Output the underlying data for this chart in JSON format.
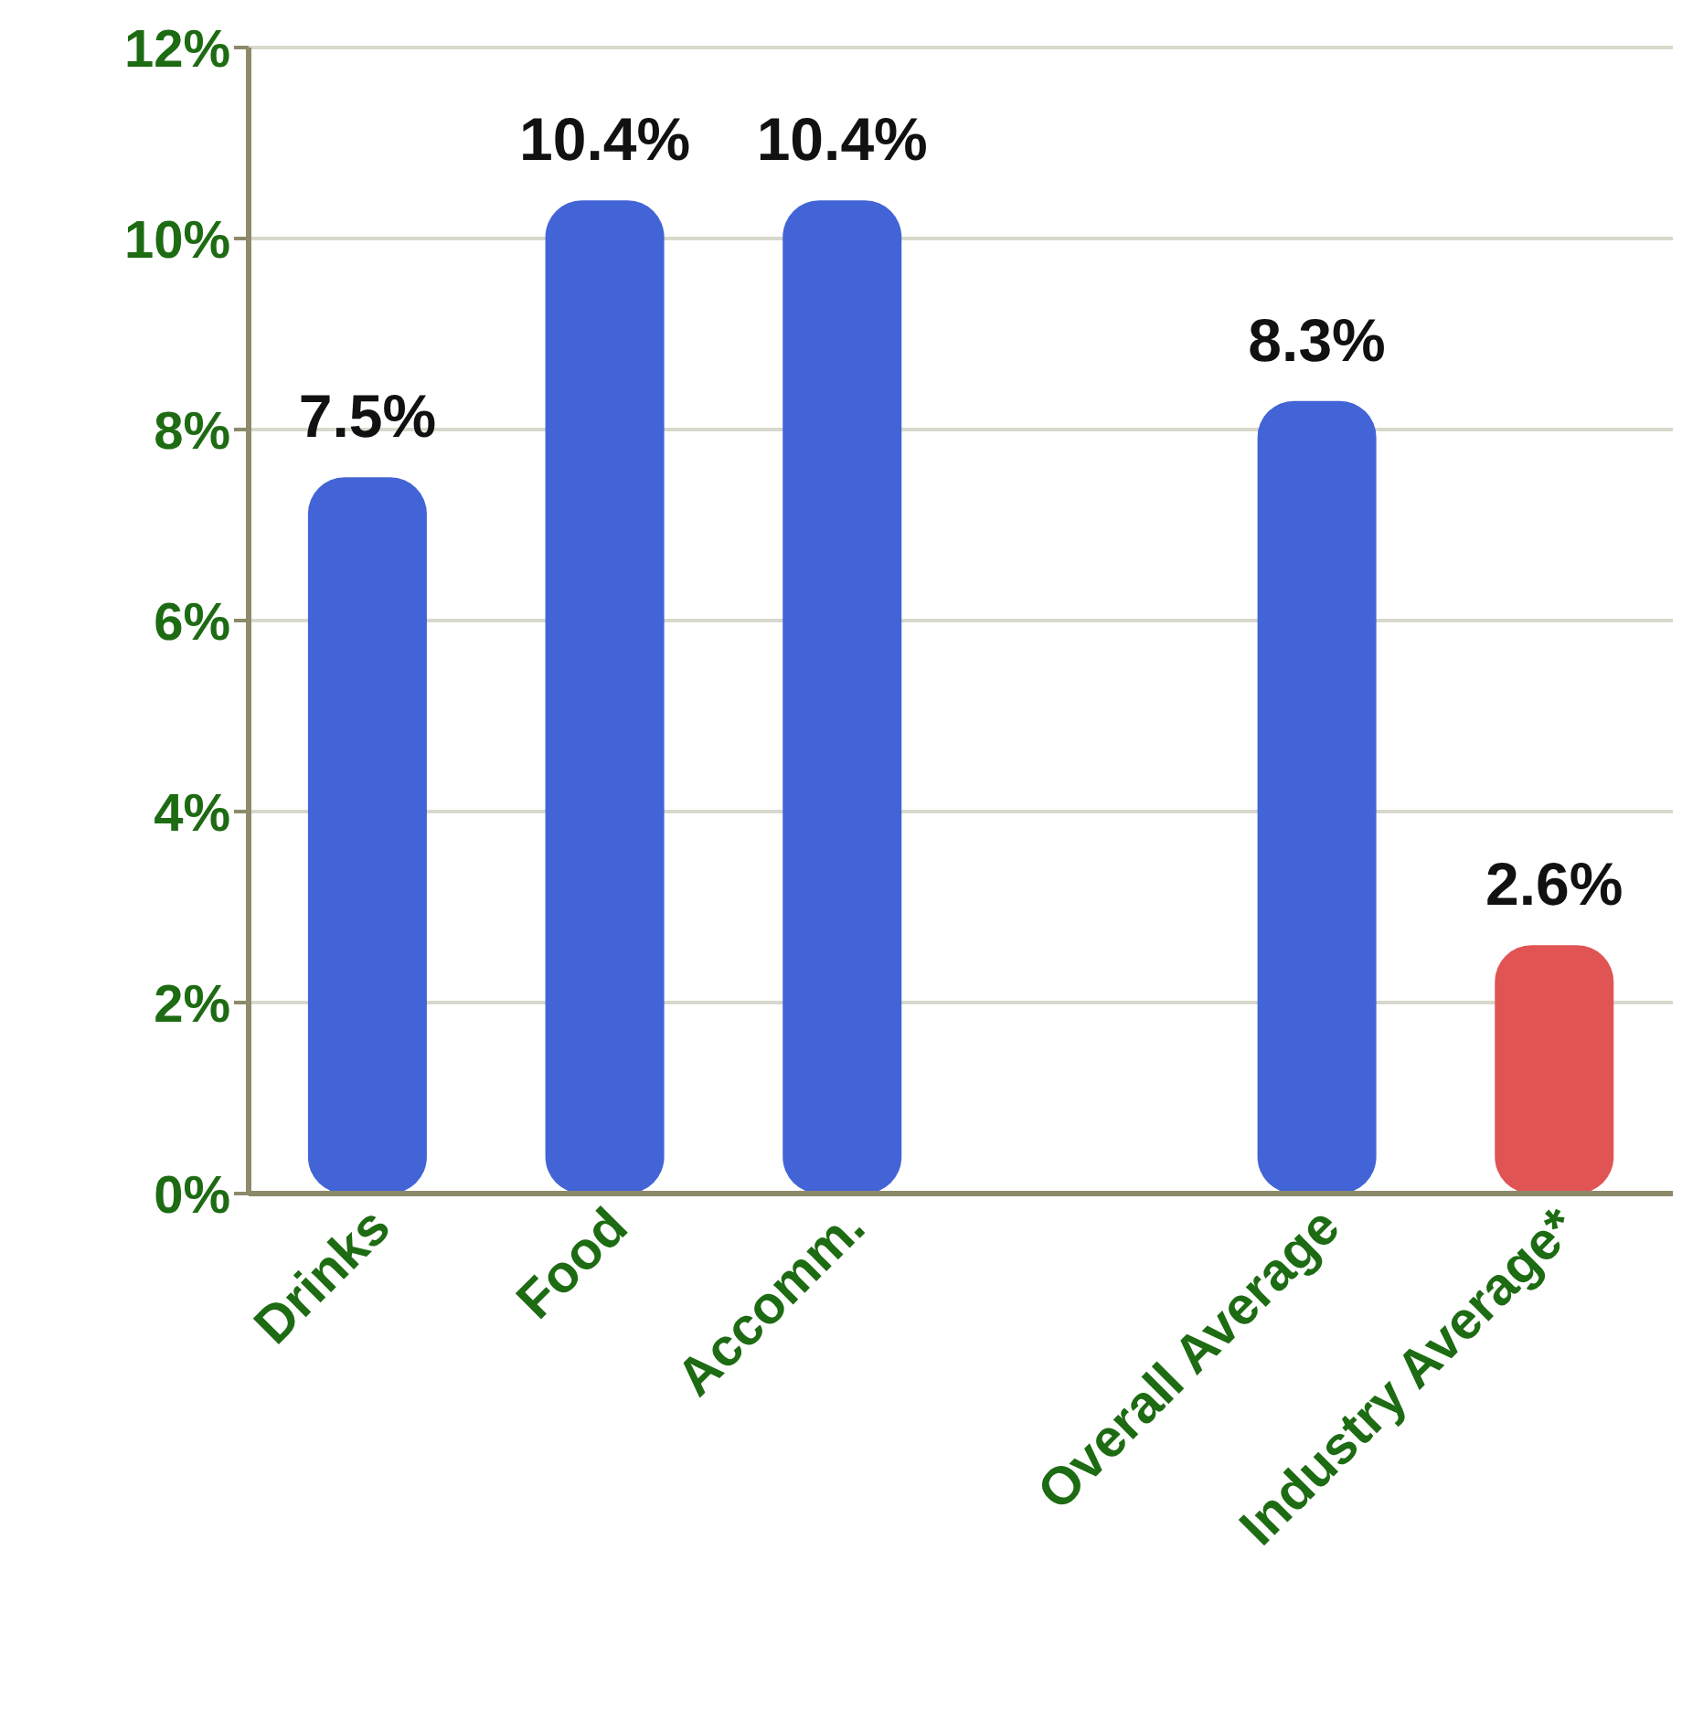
{
  "chart_data": {
    "type": "bar",
    "categories": [
      "Drinks",
      "Food",
      "Accomm.",
      null,
      "Overall Average",
      "Industry Average*"
    ],
    "values": [
      7.5,
      10.4,
      10.4,
      null,
      8.3,
      2.6
    ],
    "value_labels": [
      "7.5%",
      "10.4%",
      "10.4%",
      null,
      "8.3%",
      "2.6%"
    ],
    "colors": [
      "#4264d6",
      "#4264d6",
      "#4264d6",
      "#4264d6",
      "#4264d6",
      "#e05454"
    ],
    "ylim": [
      0,
      12
    ],
    "yticks": [
      {
        "value": 0,
        "label": "0%"
      },
      {
        "value": 2,
        "label": "2%"
      },
      {
        "value": 4,
        "label": "4%"
      },
      {
        "value": 6,
        "label": "6%"
      },
      {
        "value": 8,
        "label": "8%"
      },
      {
        "value": 10,
        "label": "10%"
      },
      {
        "value": 12,
        "label": "12%"
      }
    ],
    "grid": "y"
  }
}
